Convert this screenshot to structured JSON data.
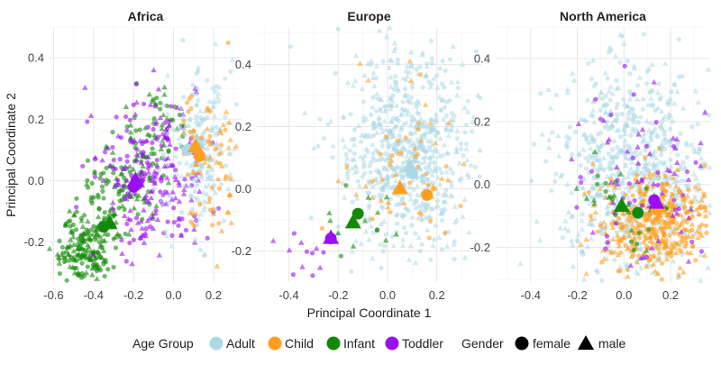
{
  "chart_data": {
    "type": "scatter",
    "xlabel": "Principal Coordinate 1",
    "ylabel": "Principal Coordinate 2",
    "grid": true,
    "legend": {
      "position": "bottom",
      "age_title": "Age Group",
      "age_items": [
        {
          "label": "Adult",
          "color": "#add8e6"
        },
        {
          "label": "Child",
          "color": "#ff9e1f"
        },
        {
          "label": "Infant",
          "color": "#138a07"
        },
        {
          "label": "Toddler",
          "color": "#9a0ff0"
        }
      ],
      "gender_title": "Gender",
      "gender_items": [
        {
          "label": "female",
          "shape": "circle"
        },
        {
          "label": "male",
          "shape": "triangle"
        }
      ]
    },
    "panels": [
      {
        "title": "Africa",
        "xlim": [
          -0.62,
          0.34
        ],
        "ylim": [
          -0.33,
          0.5
        ],
        "xticks": [
          -0.6,
          -0.4,
          -0.2,
          0.0,
          0.2
        ],
        "xtick_labels": [
          "-0.6",
          "-0.4",
          "-0.2",
          "0.0",
          "0.2"
        ],
        "yticks": [
          -0.2,
          0.0,
          0.2,
          0.4
        ],
        "ytick_labels": [
          "-0.2",
          "0.0",
          "0.2",
          "0.4"
        ],
        "centroids": [
          {
            "group": "Adult",
            "gender": "female",
            "x": 0.07,
            "y": 0.1
          },
          {
            "group": "Adult",
            "gender": "male",
            "x": 0.12,
            "y": 0.12
          },
          {
            "group": "Child",
            "gender": "female",
            "x": 0.13,
            "y": 0.08
          },
          {
            "group": "Child",
            "gender": "male",
            "x": 0.11,
            "y": 0.11
          },
          {
            "group": "Infant",
            "gender": "female",
            "x": -0.35,
            "y": -0.15
          },
          {
            "group": "Infant",
            "gender": "male",
            "x": -0.32,
            "y": -0.14
          },
          {
            "group": "Toddler",
            "gender": "female",
            "x": -0.2,
            "y": -0.02
          },
          {
            "group": "Toddler",
            "gender": "male",
            "x": -0.19,
            "y": 0.0
          }
        ],
        "clouds": [
          {
            "group": "Infant",
            "n": 260,
            "cx": -0.3,
            "cy": -0.08,
            "sx": 0.13,
            "sy": 0.13,
            "shape": "triangle-path"
          },
          {
            "group": "Infant",
            "n": 120,
            "cx": -0.42,
            "cy": -0.24,
            "sx": 0.07,
            "sy": 0.05
          },
          {
            "group": "Toddler",
            "n": 240,
            "cx": -0.12,
            "cy": 0.02,
            "sx": 0.14,
            "sy": 0.13
          },
          {
            "group": "Adult",
            "n": 200,
            "cx": 0.14,
            "cy": 0.12,
            "sx": 0.08,
            "sy": 0.14
          },
          {
            "group": "Child",
            "n": 80,
            "cx": 0.18,
            "cy": 0.04,
            "sx": 0.07,
            "sy": 0.12
          }
        ]
      },
      {
        "title": "Europe",
        "xlim": [
          -0.53,
          0.38
        ],
        "ylim": [
          -0.3,
          0.52
        ],
        "xticks": [
          -0.4,
          -0.2,
          0.0,
          0.2
        ],
        "xtick_labels": [
          "-0.4",
          "-0.2",
          "0.0",
          "0.2"
        ],
        "yticks": [
          -0.2,
          0.0,
          0.2,
          0.4
        ],
        "ytick_labels": [
          "-0.2",
          "0.0",
          "0.2",
          "0.4"
        ],
        "centroids": [
          {
            "group": "Adult",
            "gender": "female",
            "x": 0.1,
            "y": 0.05
          },
          {
            "group": "Adult",
            "gender": "male",
            "x": 0.09,
            "y": 0.07
          },
          {
            "group": "Child",
            "gender": "female",
            "x": 0.16,
            "y": -0.02
          },
          {
            "group": "Child",
            "gender": "male",
            "x": 0.05,
            "y": 0.0
          },
          {
            "group": "Infant",
            "gender": "female",
            "x": -0.12,
            "y": -0.08
          },
          {
            "group": "Infant",
            "gender": "male",
            "x": -0.14,
            "y": -0.11
          },
          {
            "group": "Toddler",
            "gender": "female",
            "x": -0.23,
            "y": -0.16
          },
          {
            "group": "Toddler",
            "gender": "male",
            "x": -0.23,
            "y": -0.16
          }
        ],
        "clouds": [
          {
            "group": "Adult",
            "n": 700,
            "cx": 0.08,
            "cy": 0.12,
            "sx": 0.14,
            "sy": 0.16
          },
          {
            "group": "Child",
            "n": 60,
            "cx": 0.08,
            "cy": 0.05,
            "sx": 0.14,
            "sy": 0.15
          },
          {
            "group": "Infant",
            "n": 14,
            "cx": -0.15,
            "cy": -0.12,
            "sx": 0.1,
            "sy": 0.06
          },
          {
            "group": "Toddler",
            "n": 14,
            "cx": -0.35,
            "cy": -0.22,
            "sx": 0.1,
            "sy": 0.05
          }
        ]
      },
      {
        "title": "North America",
        "xlim": [
          -0.55,
          0.37
        ],
        "ylim": [
          -0.31,
          0.5
        ],
        "xticks": [
          -0.4,
          -0.2,
          0.0,
          0.2
        ],
        "xtick_labels": [
          "-0.4",
          "-0.2",
          "0.0",
          "0.2"
        ],
        "yticks": [
          -0.2,
          0.0,
          0.2,
          0.4
        ],
        "ytick_labels": [
          "-0.2",
          "0.0",
          "0.2",
          "0.4"
        ],
        "centroids": [
          {
            "group": "Adult",
            "gender": "female",
            "x": 0.14,
            "y": -0.06
          },
          {
            "group": "Adult",
            "gender": "male",
            "x": 0.13,
            "y": -0.05
          },
          {
            "group": "Child",
            "gender": "female",
            "x": 0.14,
            "y": -0.08
          },
          {
            "group": "Child",
            "gender": "male",
            "x": 0.15,
            "y": -0.07
          },
          {
            "group": "Infant",
            "gender": "female",
            "x": 0.06,
            "y": -0.09
          },
          {
            "group": "Infant",
            "gender": "male",
            "x": -0.01,
            "y": -0.07
          },
          {
            "group": "Toddler",
            "gender": "female",
            "x": 0.13,
            "y": -0.05
          },
          {
            "group": "Toddler",
            "gender": "male",
            "x": 0.14,
            "y": -0.06
          }
        ],
        "clouds": [
          {
            "group": "Adult",
            "n": 750,
            "cx": 0.05,
            "cy": 0.04,
            "sx": 0.16,
            "sy": 0.17
          },
          {
            "group": "Child",
            "n": 420,
            "cx": 0.12,
            "cy": -0.12,
            "sx": 0.12,
            "sy": 0.08
          },
          {
            "group": "Toddler",
            "n": 90,
            "cx": 0.1,
            "cy": 0.0,
            "sx": 0.15,
            "sy": 0.14
          },
          {
            "group": "Infant",
            "n": 30,
            "cx": 0.0,
            "cy": -0.08,
            "sx": 0.1,
            "sy": 0.06
          }
        ]
      }
    ]
  }
}
